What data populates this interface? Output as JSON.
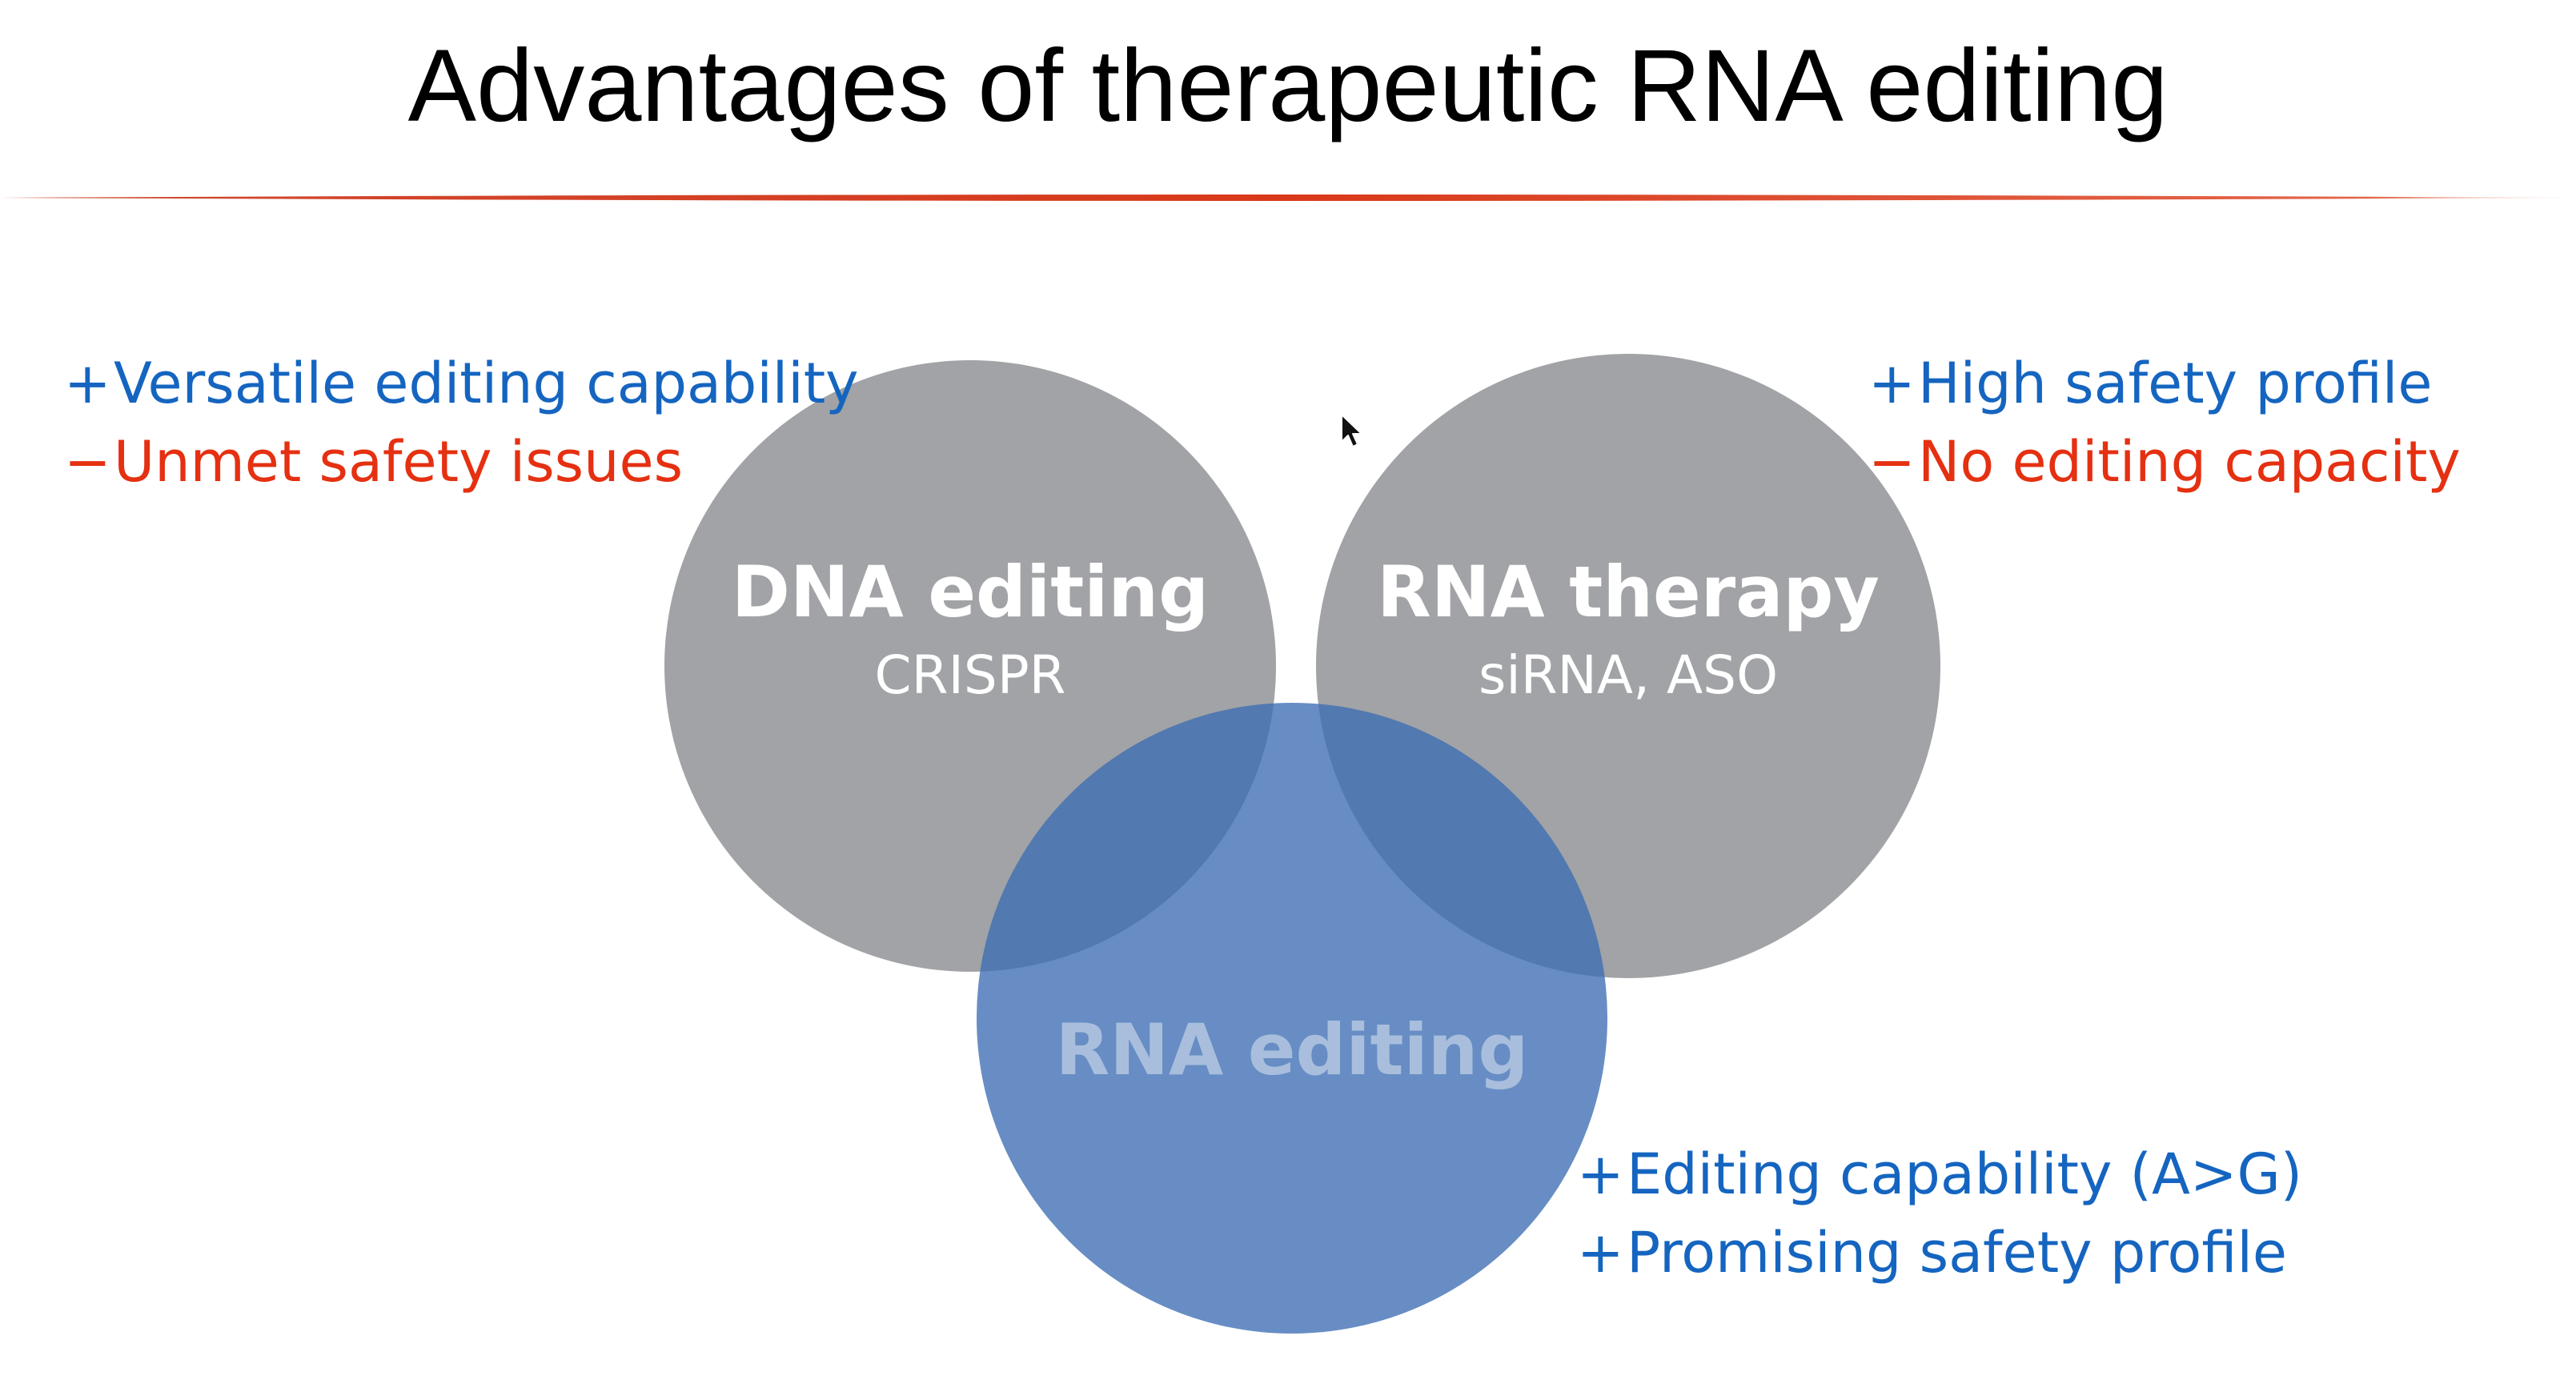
{
  "slide": {
    "title": "Advantages of therapeutic RNA editing",
    "accent_color": "#d9391a"
  },
  "venn": {
    "circles": [
      {
        "id": "dna_editing",
        "title": "DNA editing",
        "subtitle": "CRISPR",
        "color": "#9a9c9f"
      },
      {
        "id": "rna_therapy",
        "title": "RNA therapy",
        "subtitle": "siRNA, ASO",
        "color": "#9a9c9f"
      },
      {
        "id": "rna_editing",
        "title": "RNA editing",
        "subtitle": "",
        "color": "#4f7dbd"
      }
    ]
  },
  "notes": {
    "dna_editing": {
      "plus": "Versatile editing capability",
      "minus": "Unmet safety issues"
    },
    "rna_therapy": {
      "plus": "High safety profile",
      "minus": "No editing capacity"
    },
    "rna_editing": {
      "plus_1": "Editing capability (A>G)",
      "plus_2": "Promising safety profile"
    }
  },
  "symbols": {
    "plus": "+",
    "minus": "−"
  },
  "colors": {
    "plus_text": "#1565c0",
    "minus_text": "#e53011",
    "circle_label": "#ffffff"
  }
}
